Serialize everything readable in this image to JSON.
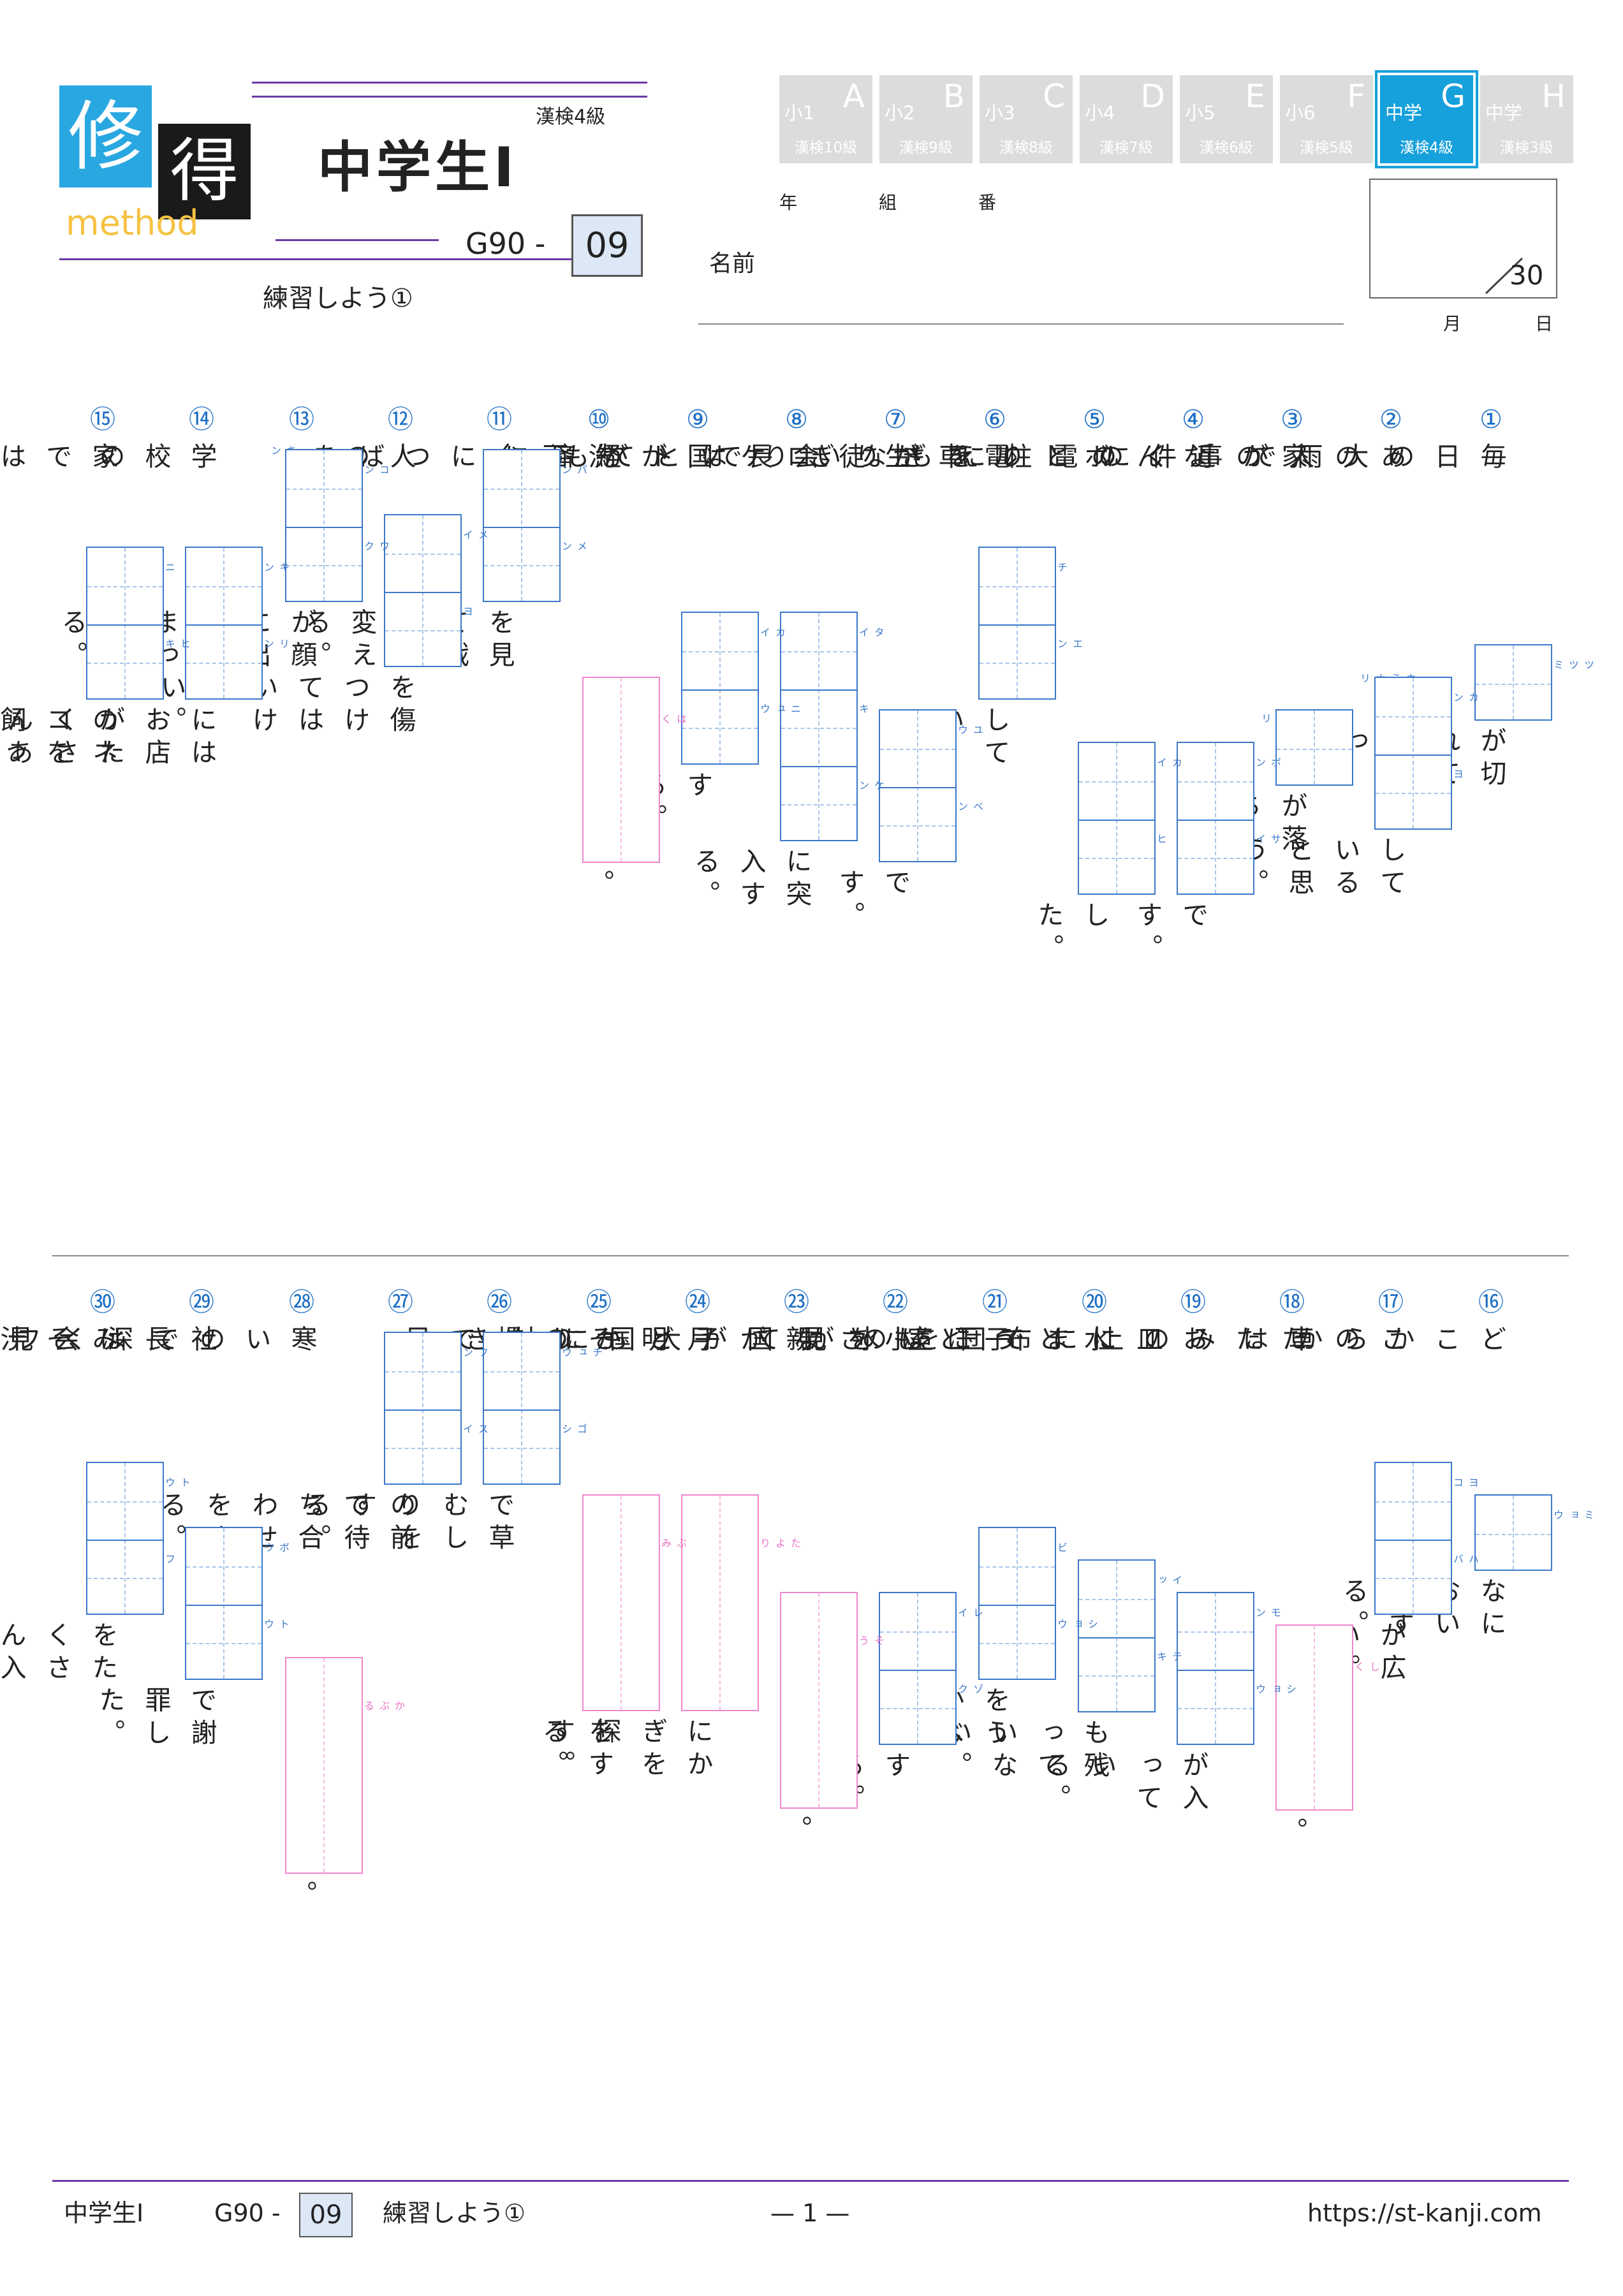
{
  "header": {
    "logo_char1": "修",
    "logo_char2": "得",
    "logo_method": "method",
    "kanken_level": "漢検4級",
    "course_title": "中学生Ⅰ",
    "code_prefix": "G90 -",
    "code_number": "09",
    "worksheet_title": "練習しよう①",
    "year_label": "年",
    "class_label": "組",
    "number_label": "番",
    "name_label": "名前",
    "score_total": "30",
    "month_label": "月",
    "day_label": "日"
  },
  "grade_badges": [
    {
      "grade": "小1",
      "letter": "A",
      "kanken": "漢検10級",
      "active": false
    },
    {
      "grade": "小2",
      "letter": "B",
      "kanken": "漢検9級",
      "active": false
    },
    {
      "grade": "小3",
      "letter": "C",
      "kanken": "漢検8級",
      "active": false
    },
    {
      "grade": "小4",
      "letter": "D",
      "kanken": "漢検7級",
      "active": false
    },
    {
      "grade": "小5",
      "letter": "E",
      "kanken": "漢検6級",
      "active": false
    },
    {
      "grade": "小6",
      "letter": "F",
      "kanken": "漢検5級",
      "active": false
    },
    {
      "grade": "中学",
      "letter": "G",
      "kanken": "漢検4級",
      "active": true
    },
    {
      "grade": "中学",
      "letter": "H",
      "kanken": "漢検3級",
      "active": false
    }
  ],
  "questions": [
    {
      "num": "①",
      "parts": [
        {
          "t": "毎日の大雨で"
        },
        {
          "box": "blue",
          "cells": 1,
          "ruby": [
            "ツツミ"
          ]
        },
        {
          "t": "が切れてしまった。"
        }
      ]
    },
    {
      "num": "②",
      "parts": [
        {
          "t": "あの人が事件に"
        },
        {
          "box": "blue",
          "cells": 2,
          "ruby": [
            "カン",
            "ヨ"
          ],
          "extra": "カミナリ"
        },
        {
          "t": "していると思う。"
        }
      ]
    },
    {
      "num": "③",
      "parts": [
        {
          "t": "家の近くの電柱に"
        },
        {
          "box": "blue",
          "cells": 1,
          "ruby": [
            ""
          ],
          "extra": "カミナリ"
        },
        {
          "t": "が落ちた。"
        }
      ]
    },
    {
      "num": "④",
      "parts": [
        {
          "t": "なんのとりえもない"
        },
        {
          "box": "blue",
          "cells": 2,
          "ruby": [
            "ボン",
            "サイ"
          ]
        },
        {
          "t": "です。"
        }
      ]
    },
    {
      "num": "⑤",
      "parts": [
        {
          "t": "ボールをぎりぎりで"
        },
        {
          "box": "blue",
          "cells": 2,
          "ruby": [
            "カイ",
            "ヒ"
          ]
        },
        {
          "t": "した。"
        }
      ]
    },
    {
      "num": "⑥",
      "parts": [
        {
          "t": "電車が"
        },
        {
          "box": "blue",
          "cells": 2,
          "ruby": [
            "チ",
            "エン"
          ]
        },
        {
          "t": "している。"
        }
      ]
    },
    {
      "num": "⑦",
      "parts": [
        {
          "t": "生徒会長はとても"
        },
        {
          "box": "blue",
          "cells": 2,
          "ruby": [
            "ユウ",
            "ベン"
          ]
        },
        {
          "t": "です。"
        }
      ]
    },
    {
      "num": "⑧",
      "parts": [
        {
          "t": "ロケットが"
        },
        {
          "box": "blue",
          "cells": 3,
          "ruby": [
            "タイ",
            "キ",
            "ケン"
          ]
        },
        {
          "t": "に突入する。"
        }
      ]
    },
    {
      "num": "⑨",
      "parts": [
        {
          "t": "国が経済に"
        },
        {
          "box": "blue",
          "cells": 2,
          "ruby": [
            "カイ",
            "ニュウ"
          ]
        },
        {
          "t": "する。"
        }
      ]
    },
    {
      "num": "⑩",
      "parts": [
        {
          "t": "洗面台につばを"
        },
        {
          "box": "pink",
          "cells": 1,
          "len": 292,
          "ruby": [
            "はく"
          ]
        },
        {
          "t": "。"
        }
      ]
    },
    {
      "num": "⑪",
      "parts": [
        {
          "box": "blue",
          "cells": 2,
          "ruby": [
            "パン",
            "メン"
          ]
        },
        {
          "t": "を見て戦術を変える。"
        }
      ]
    },
    {
      "num": "⑫",
      "parts": [
        {
          "t": "人の"
        },
        {
          "box": "blue",
          "cells": 2,
          "ruby": [
            "メイ",
            "ヨ"
          ]
        },
        {
          "t": "を傷つけてはいけない。"
        }
      ]
    },
    {
      "num": "⑬",
      "parts": [
        {
          "box": "blue",
          "cells": 2,
          "ruby": [
            "コン",
            "ワク"
          ],
          "extra": "キン"
        },
        {
          "t": "が顔に出てしまっている。"
        }
      ]
    },
    {
      "num": "⑭",
      "parts": [
        {
          "t": "学校の"
        },
        {
          "box": "blue",
          "cells": 2,
          "ruby": [
            "キン",
            "リン"
          ]
        },
        {
          "t": "にはお店がたくさんある。"
        }
      ]
    },
    {
      "num": "⑮",
      "parts": [
        {
          "t": "家では"
        },
        {
          "box": "blue",
          "cells": 2,
          "ruby": [
            "ニ",
            "ヒキ"
          ]
        },
        {
          "t": "のネコを飼っている。"
        }
      ]
    },
    {
      "num": "⑯",
      "parts": [
        {
          "t": "どこからか"
        },
        {
          "box": "blue",
          "cells": 1,
          "ruby": [
            "ミョウ"
          ]
        },
        {
          "t": "なにおいがする。"
        }
      ]
    },
    {
      "num": "⑰",
      "parts": [
        {
          "t": "この車は"
        },
        {
          "box": "blue",
          "cells": 2,
          "ruby": [
            "ヨコ",
            "ハバ"
          ]
        },
        {
          "t": "が広い。"
        }
      ]
    },
    {
      "num": "⑱",
      "parts": [
        {
          "t": "たたみの上に布団を"
        },
        {
          "box": "pink",
          "cells": 1,
          "len": 292,
          "ruby": [
            "しく"
          ]
        },
        {
          "t": "。"
        }
      ]
    },
    {
      "num": "⑲",
      "parts": [
        {
          "t": "お皿にまで王室の"
        },
        {
          "box": "blue",
          "cells": 2,
          "ruby": [
            "モン",
            "ショウ"
          ]
        },
        {
          "t": "が入っている。"
        }
      ]
    },
    {
      "num": "⑳",
      "parts": [
        {
          "t": "水とうには水が"
        },
        {
          "box": "blue",
          "cells": 2,
          "ruby": [
            "イッ",
            "テキ"
          ]
        },
        {
          "t": "も残っていない。"
        }
      ]
    },
    {
      "num": "㉑",
      "parts": [
        {
          "t": "子どもを見て"
        },
        {
          "box": "blue",
          "cells": 2,
          "ruby": [
            "ビ",
            "ショウ"
          ]
        },
        {
          "t": "をうかべる。"
        }
      ]
    },
    {
      "num": "㉒",
      "parts": [
        {
          "t": "小さな国が大国に"
        },
        {
          "box": "blue",
          "cells": 2,
          "ruby": [
            "レイ",
            "ゾク"
          ]
        },
        {
          "t": "する。"
        }
      ]
    },
    {
      "num": "㉓",
      "parts": [
        {
          "t": "親が子どもに付き"
        },
        {
          "box": "pink",
          "cells": 1,
          "len": 340,
          "ruby": [
            "そう"
          ]
        },
        {
          "t": "。"
        }
      ]
    },
    {
      "num": "㉔",
      "parts": [
        {
          "t": "月明かりを"
        },
        {
          "box": "pink",
          "cells": 1,
          "len": 340,
          "ruby": [
            "たより"
          ]
        },
        {
          "t": "にかぎを探す。"
        }
      ]
    },
    {
      "num": "㉕",
      "parts": [
        {
          "t": "その場で足"
        },
        {
          "box": "pink",
          "cells": 1,
          "len": 340,
          "ruby": [
            "ぶみ"
          ]
        },
        {
          "t": "をする。"
        }
      ]
    },
    {
      "num": "㉖",
      "parts": [
        {
          "box": "blue",
          "cells": 2,
          "ruby": [
            "チュウ",
            "ゴシ"
          ]
        },
        {
          "t": "で草むしりをする。"
        }
      ]
    },
    {
      "num": "㉗",
      "parts": [
        {
          "box": "blue",
          "cells": 2,
          "ruby": [
            "フン",
            "スイ"
          ]
        },
        {
          "t": "の前で待ち合わせをする。"
        }
      ]
    },
    {
      "num": "㉘",
      "parts": [
        {
          "t": "寒いので深くフードを"
        },
        {
          "box": "pink",
          "cells": 1,
          "len": 340,
          "ruby": [
            "かぶる"
          ]
        },
        {
          "t": "。"
        }
      ]
    },
    {
      "num": "㉙",
      "parts": [
        {
          "t": "社長は会見の"
        },
        {
          "box": "blue",
          "cells": 2,
          "ruby": [
            "ボウ",
            "トウ"
          ]
        },
        {
          "t": "で謝罪した。"
        }
      ]
    },
    {
      "num": "㉚",
      "parts": [
        {
          "t": "みそ汁に"
        },
        {
          "box": "blue",
          "cells": 2,
          "ruby": [
            "トウ",
            "フ"
          ]
        },
        {
          "t": "をたくさん入れる。"
        }
      ]
    }
  ],
  "footer": {
    "course": "中学生Ⅰ",
    "code_prefix": "G90 -",
    "code_number": "09",
    "title": "練習しよう①",
    "page": "— 1 —",
    "url": "https://st-kanji.com"
  }
}
